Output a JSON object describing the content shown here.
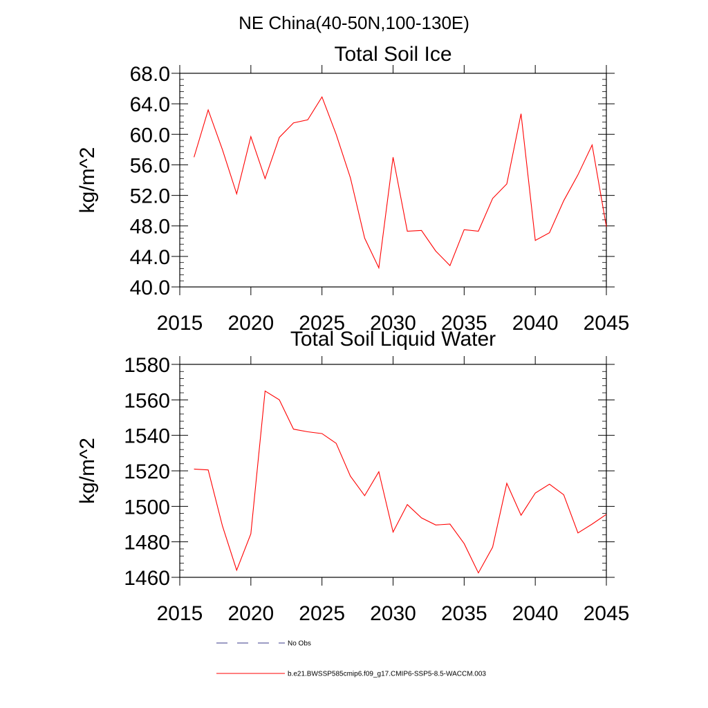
{
  "figure": {
    "suptitle": "NE China(40-50N,100-130E)"
  },
  "legend": {
    "placement": "bottom",
    "entries": [
      {
        "label": "No Obs",
        "style": "dashed",
        "color": "#3a3a8a"
      },
      {
        "label": "b.e21.BWSSP585cmip6.f09_g17.CMIP6-SSP5-8.5-WACCM.003",
        "style": "solid",
        "color": "#ff0000"
      }
    ]
  },
  "chart_data": [
    {
      "type": "line",
      "title": "Total Soil Ice",
      "xlabel": "",
      "ylabel": "kg/m^2",
      "xlim": [
        2015,
        2045
      ],
      "ylim": [
        40,
        68
      ],
      "xticks": [
        2015,
        2020,
        2025,
        2030,
        2035,
        2040,
        2045
      ],
      "xtick_labels": [
        "2015",
        "2020",
        "2025",
        "2030",
        "2035",
        "2040",
        "2045"
      ],
      "yticks": [
        40,
        44,
        48,
        52,
        56,
        60,
        64,
        68
      ],
      "ytick_labels": [
        "40.0",
        "44.0",
        "48.0",
        "52.0",
        "56.0",
        "60.0",
        "64.0",
        "68.0"
      ],
      "grid": false,
      "series": [
        {
          "name": "b.e21.BWSSP585cmip6.f09_g17.CMIP6-SSP5-8.5-WACCM.003",
          "color": "#ff0000",
          "x": [
            2016,
            2017,
            2018,
            2019,
            2020,
            2021,
            2022,
            2023,
            2024,
            2025,
            2026,
            2027,
            2028,
            2029,
            2030,
            2031,
            2032,
            2033,
            2034,
            2035,
            2036,
            2037,
            2038,
            2039,
            2040,
            2041,
            2042,
            2043,
            2044,
            2045
          ],
          "values": [
            57.0,
            63.2,
            58.0,
            52.2,
            59.7,
            54.2,
            59.6,
            61.5,
            61.9,
            64.9,
            60.0,
            54.3,
            46.4,
            42.5,
            57.0,
            47.3,
            47.4,
            44.7,
            42.8,
            47.5,
            47.3,
            51.6,
            53.5,
            62.7,
            46.1,
            47.1,
            51.3,
            54.7,
            58.6,
            47.9
          ]
        }
      ]
    },
    {
      "type": "line",
      "title": "Total Soil Liquid Water",
      "xlabel": "",
      "ylabel": "kg/m^2",
      "xlim": [
        2015,
        2045
      ],
      "ylim": [
        1460,
        1580
      ],
      "xticks": [
        2015,
        2020,
        2025,
        2030,
        2035,
        2040,
        2045
      ],
      "xtick_labels": [
        "2015",
        "2020",
        "2025",
        "2030",
        "2035",
        "2040",
        "2045"
      ],
      "yticks": [
        1460,
        1480,
        1500,
        1520,
        1540,
        1560,
        1580
      ],
      "ytick_labels": [
        "1460",
        "1480",
        "1500",
        "1520",
        "1540",
        "1560",
        "1580"
      ],
      "grid": false,
      "series": [
        {
          "name": "b.e21.BWSSP585cmip6.f09_g17.CMIP6-SSP5-8.5-WACCM.003",
          "color": "#ff0000",
          "x": [
            2016,
            2017,
            2018,
            2019,
            2020,
            2021,
            2022,
            2023,
            2024,
            2025,
            2026,
            2027,
            2028,
            2029,
            2030,
            2031,
            2032,
            2033,
            2034,
            2035,
            2036,
            2037,
            2038,
            2039,
            2040,
            2041,
            2042,
            2043,
            2044,
            2045
          ],
          "values": [
            1521,
            1520.5,
            1489,
            1464,
            1484.5,
            1565,
            1560,
            1543.5,
            1542,
            1541,
            1535.5,
            1517,
            1506,
            1519.5,
            1485.5,
            1501,
            1493.5,
            1489.5,
            1490,
            1479,
            1462.5,
            1477,
            1513,
            1495,
            1507.5,
            1512.5,
            1506.5,
            1485,
            1490,
            1495.5
          ]
        }
      ]
    }
  ]
}
